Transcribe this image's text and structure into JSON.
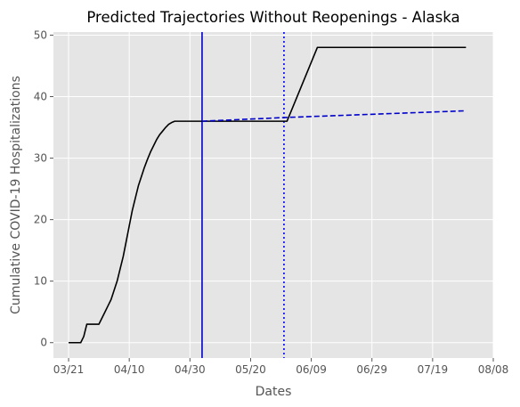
{
  "chart_data": {
    "type": "line",
    "title": "Predicted Trajectories Without Reopenings - Alaska",
    "xlabel": "Dates",
    "ylabel": "Cumulative COVID-19 Hospitalizations",
    "x_axis": {
      "type": "date",
      "year": 2020,
      "range": [
        "2020-03-16",
        "2020-08-08"
      ],
      "ticks": [
        {
          "date": "2020-03-21",
          "label": "03/21"
        },
        {
          "date": "2020-04-10",
          "label": "04/10"
        },
        {
          "date": "2020-04-30",
          "label": "04/30"
        },
        {
          "date": "2020-05-20",
          "label": "05/20"
        },
        {
          "date": "2020-06-09",
          "label": "06/09"
        },
        {
          "date": "2020-06-29",
          "label": "06/29"
        },
        {
          "date": "2020-07-19",
          "label": "07/19"
        },
        {
          "date": "2020-08-08",
          "label": "08/08"
        }
      ]
    },
    "y_axis": {
      "range": [
        -2.5,
        50.5
      ],
      "ticks": [
        0,
        10,
        20,
        30,
        40,
        50
      ]
    },
    "grid": true,
    "series": [
      {
        "style": "solid",
        "color": "#000000",
        "points": [
          [
            "2020-03-21",
            0
          ],
          [
            "2020-03-25",
            0
          ],
          [
            "2020-03-26",
            1
          ],
          [
            "2020-03-27",
            3
          ],
          [
            "2020-03-30",
            3
          ],
          [
            "2020-03-31",
            3
          ],
          [
            "2020-04-01",
            4
          ],
          [
            "2020-04-02",
            5
          ],
          [
            "2020-04-03",
            6
          ],
          [
            "2020-04-04",
            7
          ],
          [
            "2020-04-05",
            8.5
          ],
          [
            "2020-04-06",
            10
          ],
          [
            "2020-04-07",
            12
          ],
          [
            "2020-04-08",
            14
          ],
          [
            "2020-04-09",
            16.5
          ],
          [
            "2020-04-10",
            19
          ],
          [
            "2020-04-11",
            21.5
          ],
          [
            "2020-04-12",
            23.5
          ],
          [
            "2020-04-13",
            25.5
          ],
          [
            "2020-04-14",
            27
          ],
          [
            "2020-04-15",
            28.5
          ],
          [
            "2020-04-16",
            29.8
          ],
          [
            "2020-04-17",
            31
          ],
          [
            "2020-04-18",
            32
          ],
          [
            "2020-04-19",
            33
          ],
          [
            "2020-04-20",
            33.8
          ],
          [
            "2020-04-21",
            34.4
          ],
          [
            "2020-04-22",
            35
          ],
          [
            "2020-04-23",
            35.5
          ],
          [
            "2020-04-24",
            35.8
          ],
          [
            "2020-04-25",
            36
          ],
          [
            "2020-05-04",
            36
          ],
          [
            "2020-06-01",
            36
          ],
          [
            "2020-06-11",
            48
          ],
          [
            "2020-07-30",
            48
          ]
        ]
      },
      {
        "style": "dashed",
        "color": "#0000cc",
        "points": [
          [
            "2020-05-04",
            36
          ],
          [
            "2020-05-31",
            36.6
          ],
          [
            "2020-07-30",
            37.7
          ]
        ]
      }
    ],
    "vertical_lines": [
      {
        "date": "2020-05-04",
        "style": "solid",
        "color": "#0000cc"
      },
      {
        "date": "2020-05-31",
        "style": "dotted",
        "color": "#0000ff"
      }
    ],
    "colors": {
      "plot_background": "#e5e5e5",
      "grid": "#ffffff",
      "text": "#555555",
      "title": "#000000"
    }
  }
}
